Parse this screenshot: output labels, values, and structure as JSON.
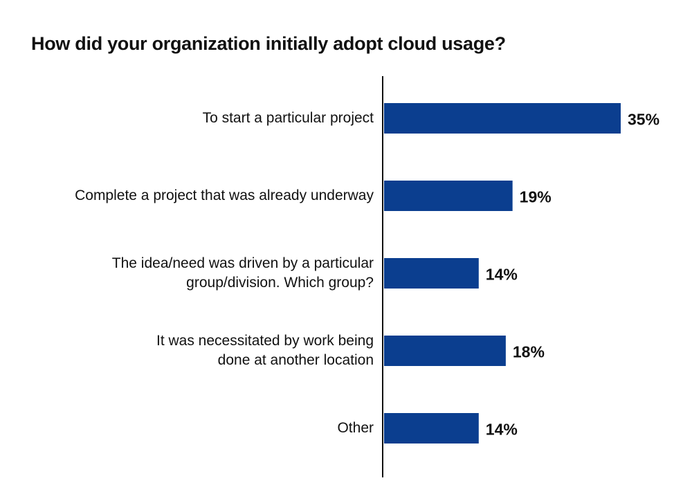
{
  "chart_data": {
    "type": "bar",
    "orientation": "horizontal",
    "title": "How did your organization initially adopt cloud usage?",
    "categories": [
      "To start a particular project",
      "Complete a project that was already underway",
      "The idea/need was driven by a particular\ngroup/division. Which group?",
      "It was necessitated by work being\ndone at another location",
      "Other"
    ],
    "values": [
      35,
      19,
      14,
      18,
      14
    ],
    "value_labels": [
      "35%",
      "19%",
      "14%",
      "18%",
      "14%"
    ],
    "color": "#0b3e8f"
  }
}
